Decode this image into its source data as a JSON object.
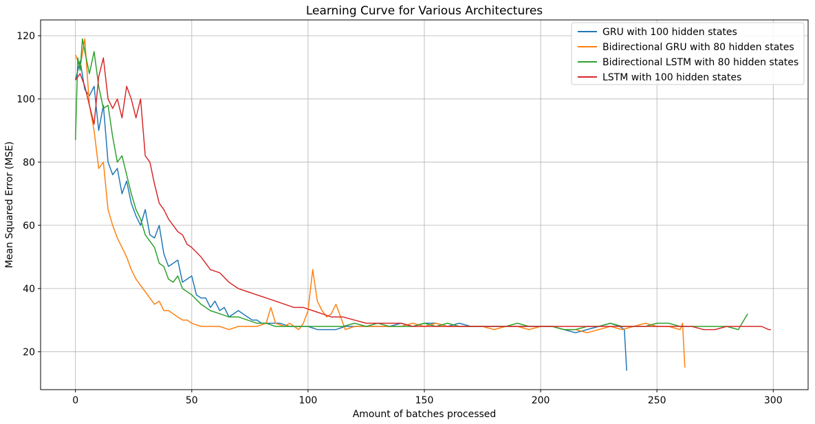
{
  "chart_data": {
    "type": "line",
    "title": "Learning Curve for Various Architectures",
    "xlabel": "Amount of batches processed",
    "ylabel": "Mean Squared Error (MSE)",
    "xlim": [
      -15,
      315
    ],
    "ylim": [
      8,
      125
    ],
    "xticks": [
      0,
      50,
      100,
      150,
      200,
      250,
      300
    ],
    "yticks": [
      20,
      40,
      60,
      80,
      100,
      120
    ],
    "grid": true,
    "legend_position": "top-right",
    "series": [
      {
        "name": "GRU with 100 hidden states",
        "color": "#1f77b4",
        "x": [
          0,
          2,
          4,
          6,
          8,
          10,
          12,
          14,
          16,
          18,
          20,
          22,
          24,
          26,
          28,
          30,
          32,
          34,
          36,
          38,
          40,
          42,
          44,
          46,
          48,
          50,
          52,
          54,
          56,
          58,
          60,
          62,
          64,
          66,
          68,
          70,
          72,
          74,
          76,
          78,
          80,
          84,
          88,
          92,
          96,
          100,
          104,
          108,
          112,
          116,
          120,
          125,
          130,
          135,
          140,
          145,
          150,
          155,
          160,
          165,
          170,
          175,
          180,
          185,
          190,
          195,
          200,
          205,
          210,
          215,
          220,
          225,
          230,
          234,
          236,
          237
        ],
        "y": [
          106,
          112,
          103,
          101,
          104,
          90,
          98,
          80,
          76,
          78,
          70,
          74,
          67,
          63,
          60,
          65,
          57,
          56,
          60,
          51,
          47,
          48,
          49,
          42,
          43,
          44,
          38,
          37,
          37,
          34,
          36,
          33,
          34,
          31,
          32,
          33,
          32,
          31,
          30,
          30,
          29,
          29,
          29,
          28,
          28,
          28,
          27,
          27,
          27,
          28,
          28,
          28,
          28,
          28,
          29,
          28,
          29,
          29,
          28,
          29,
          28,
          28,
          28,
          28,
          28,
          28,
          28,
          28,
          27,
          26,
          27,
          28,
          29,
          28,
          27,
          14
        ]
      },
      {
        "name": "Bidirectional GRU with 80 hidden states",
        "color": "#ff7f0e",
        "x": [
          0,
          2,
          4,
          6,
          8,
          10,
          12,
          14,
          16,
          18,
          20,
          22,
          24,
          26,
          28,
          30,
          32,
          34,
          36,
          38,
          40,
          42,
          44,
          46,
          48,
          50,
          54,
          58,
          62,
          66,
          70,
          74,
          78,
          82,
          84,
          86,
          90,
          92,
          94,
          96,
          98,
          100,
          102,
          104,
          106,
          108,
          110,
          112,
          116,
          120,
          125,
          130,
          135,
          140,
          145,
          150,
          155,
          160,
          165,
          170,
          175,
          180,
          185,
          190,
          195,
          200,
          205,
          210,
          215,
          220,
          225,
          230,
          235,
          240,
          245,
          250,
          255,
          260,
          261,
          262
        ],
        "y": [
          114,
          110,
          119,
          98,
          90,
          78,
          80,
          65,
          60,
          56,
          53,
          50,
          46,
          43,
          41,
          39,
          37,
          35,
          36,
          33,
          33,
          32,
          31,
          30,
          30,
          29,
          28,
          28,
          28,
          27,
          28,
          28,
          28,
          29,
          34,
          29,
          28,
          29,
          28,
          27,
          29,
          33,
          46,
          36,
          33,
          31,
          32,
          35,
          27,
          28,
          28,
          28,
          28,
          28,
          29,
          28,
          29,
          28,
          28,
          28,
          28,
          27,
          28,
          28,
          27,
          28,
          28,
          27,
          27,
          26,
          27,
          28,
          27,
          28,
          29,
          28,
          28,
          27,
          29,
          15
        ]
      },
      {
        "name": "Bidirectional LSTM with 80 hidden states",
        "color": "#2ca02c",
        "x": [
          0,
          1,
          2,
          3,
          4,
          6,
          8,
          10,
          12,
          14,
          16,
          18,
          20,
          22,
          24,
          26,
          28,
          30,
          32,
          34,
          36,
          38,
          40,
          42,
          44,
          46,
          48,
          50,
          54,
          58,
          62,
          66,
          70,
          74,
          78,
          82,
          86,
          90,
          94,
          98,
          102,
          106,
          110,
          115,
          120,
          125,
          130,
          135,
          140,
          145,
          150,
          155,
          160,
          165,
          170,
          175,
          180,
          185,
          190,
          195,
          200,
          205,
          210,
          215,
          220,
          225,
          230,
          235,
          240,
          245,
          250,
          255,
          260,
          265,
          270,
          275,
          280,
          285,
          289
        ],
        "y": [
          87,
          113,
          109,
          119,
          115,
          108,
          115,
          104,
          97,
          98,
          88,
          80,
          82,
          76,
          70,
          65,
          62,
          57,
          55,
          53,
          48,
          47,
          43,
          42,
          44,
          40,
          39,
          38,
          35,
          33,
          32,
          31,
          31,
          30,
          29,
          29,
          28,
          28,
          28,
          28,
          28,
          28,
          28,
          28,
          29,
          28,
          29,
          28,
          28,
          28,
          29,
          28,
          29,
          28,
          28,
          28,
          28,
          28,
          29,
          28,
          28,
          28,
          27,
          27,
          28,
          28,
          29,
          28,
          28,
          28,
          29,
          29,
          28,
          28,
          28,
          28,
          28,
          27,
          32
        ]
      },
      {
        "name": "LSTM with 100 hidden states",
        "color": "#d62728",
        "x": [
          0,
          2,
          4,
          6,
          8,
          10,
          12,
          14,
          16,
          18,
          20,
          22,
          24,
          26,
          28,
          30,
          32,
          34,
          36,
          38,
          40,
          42,
          44,
          46,
          48,
          50,
          54,
          58,
          62,
          66,
          70,
          74,
          78,
          82,
          86,
          90,
          94,
          98,
          102,
          106,
          110,
          115,
          120,
          125,
          130,
          135,
          140,
          145,
          150,
          155,
          160,
          165,
          170,
          175,
          180,
          185,
          190,
          195,
          200,
          205,
          210,
          215,
          220,
          225,
          230,
          235,
          240,
          245,
          250,
          255,
          260,
          265,
          270,
          275,
          280,
          285,
          290,
          295,
          298,
          299
        ],
        "y": [
          106,
          108,
          104,
          98,
          92,
          107,
          113,
          100,
          97,
          100,
          94,
          104,
          100,
          94,
          100,
          82,
          80,
          73,
          67,
          65,
          62,
          60,
          58,
          57,
          54,
          53,
          50,
          46,
          45,
          42,
          40,
          39,
          38,
          37,
          36,
          35,
          34,
          34,
          33,
          32,
          31,
          31,
          30,
          29,
          29,
          29,
          29,
          28,
          28,
          28,
          28,
          28,
          28,
          28,
          28,
          28,
          28,
          28,
          28,
          28,
          28,
          28,
          28,
          28,
          28,
          28,
          28,
          28,
          28,
          28,
          28,
          28,
          27,
          27,
          28,
          28,
          28,
          28,
          27,
          27
        ]
      }
    ]
  }
}
